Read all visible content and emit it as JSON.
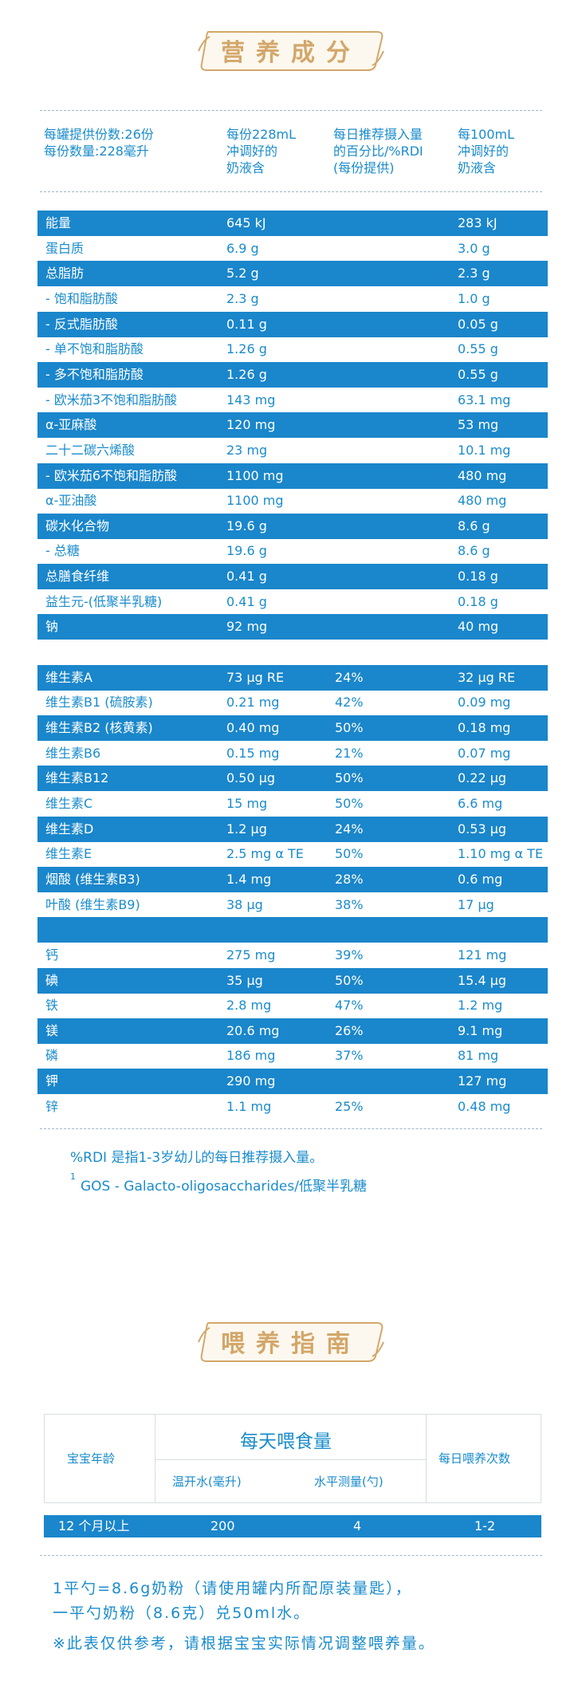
{
  "nutrition": {
    "title": "营养成分",
    "header": {
      "col1": [
        "每罐提供份数:26份",
        "每份数量:228毫升"
      ],
      "col2": [
        "每份228mL",
        "冲调好的",
        "奶液含"
      ],
      "col3": [
        "每日推荐摄入量",
        "的百分比/%RDI",
        "(每份提供)"
      ],
      "col4": [
        "每100mL",
        "冲调好的",
        "奶液含"
      ]
    },
    "rows": [
      {
        "name": "能量",
        "per": "645 kJ",
        "rdi": "",
        "p100": "283 kJ"
      },
      {
        "name": "蛋白质",
        "per": "6.9 g",
        "rdi": "",
        "p100": "3.0 g"
      },
      {
        "name": "总脂肪",
        "per": "5.2 g",
        "rdi": "",
        "p100": "2.3 g"
      },
      {
        "name": "- 饱和脂肪酸",
        "per": "2.3 g",
        "rdi": "",
        "p100": "1.0 g"
      },
      {
        "name": "- 反式脂肪酸",
        "per": "0.11 g",
        "rdi": "",
        "p100": "0.05 g"
      },
      {
        "name": "- 单不饱和脂肪酸",
        "per": "1.26 g",
        "rdi": "",
        "p100": "0.55 g"
      },
      {
        "name": "- 多不饱和脂肪酸",
        "per": "1.26 g",
        "rdi": "",
        "p100": "0.55 g"
      },
      {
        "name": "- 欧米茄3不饱和脂肪酸",
        "per": "143 mg",
        "rdi": "",
        "p100": "63.1 mg"
      },
      {
        "name": "α-亚麻酸",
        "per": "120 mg",
        "rdi": "",
        "p100": "53 mg"
      },
      {
        "name": "二十二碳六烯酸",
        "per": " 23 mg",
        "rdi": "",
        "p100": "10.1 mg"
      },
      {
        "name": "- 欧米茄6不饱和脂肪酸",
        "per": "1100 mg",
        "rdi": "",
        "p100": "480 mg"
      },
      {
        "name": "α-亚油酸",
        "per": "1100 mg",
        "rdi": "",
        "p100": "480 mg"
      },
      {
        "name": "碳水化合物",
        "per": "19.6 g",
        "rdi": "",
        "p100": "8.6 g"
      },
      {
        "name": "- 总糖",
        "per": "19.6 g",
        "rdi": "",
        "p100": "8.6 g"
      },
      {
        "name": "总膳食纤维",
        "per": "0.41 g",
        "rdi": "",
        "p100": "0.18 g"
      },
      {
        "name": "益生元-(低聚半乳糖)",
        "per": "0.41 g",
        "rdi": "",
        "p100": "0.18 g"
      },
      {
        "name": "钠",
        "per": "92 mg",
        "rdi": "",
        "p100": "40 mg"
      },
      {
        "name": "",
        "per": "",
        "rdi": "",
        "p100": ""
      },
      {
        "name": "维生素A",
        "per": "73 µg RE",
        "rdi": "24%",
        "p100": "32 µg RE"
      },
      {
        "name": "维生素B1 (硫胺素)",
        "per": "0.21 mg",
        "rdi": "42%",
        "p100": "0.09 mg"
      },
      {
        "name": "维生素B2 (核黄素)",
        "per": "0.40 mg",
        "rdi": "50%",
        "p100": "0.18 mg"
      },
      {
        "name": "维生素B6",
        "per": "0.15 mg",
        "rdi": "21%",
        "p100": "0.07 mg"
      },
      {
        "name": "维生素B12",
        "per": "0.50 µg",
        "rdi": "50%",
        "p100": "0.22 µg"
      },
      {
        "name": "维生素C",
        "per": "15 mg",
        "rdi": "50%",
        "p100": "6.6 mg"
      },
      {
        "name": "维生素D",
        "per": "1.2 µg",
        "rdi": "24%",
        "p100": "0.53 µg"
      },
      {
        "name": "维生素E",
        "per": "2.5 mg α TE",
        "rdi": "50%",
        "p100": "1.10 mg α TE"
      },
      {
        "name": "烟酸 (维生素B3)",
        "per": "1.4 mg",
        "rdi": "28%",
        "p100": "0.6 mg"
      },
      {
        "name": "叶酸 (维生素B9)",
        "per": "38 µg",
        "rdi": "38%",
        "p100": "17 µg"
      },
      {
        "name": "",
        "per": "",
        "rdi": "",
        "p100": ""
      },
      {
        "name": "钙",
        "per": "275 mg",
        "rdi": "39%",
        "p100": "121 mg"
      },
      {
        "name": "碘",
        "per": "35 µg",
        "rdi": "50%",
        "p100": "15.4 µg"
      },
      {
        "name": "铁",
        "per": "2.8 mg",
        "rdi": "47%",
        "p100": "1.2 mg"
      },
      {
        "name": "镁",
        "per": "20.6 mg",
        "rdi": "26%",
        "p100": "9.1 mg"
      },
      {
        "name": "磷",
        "per": "186 mg",
        "rdi": "37%",
        "p100": "81 mg"
      },
      {
        "name": "钾",
        "per": "290 mg",
        "rdi": "",
        "p100": "127 mg"
      },
      {
        "name": "锌",
        "per": "1.1 mg",
        "rdi": "25%",
        "p100": "0.48 mg"
      }
    ],
    "note1": "%RDI 是指1-3岁幼儿的每日推荐摄入量。",
    "note2_sup": "1",
    "note2": "GOS - Galacto-oligosaccharides/低聚半乳糖"
  },
  "feeding": {
    "title": "喂养指南",
    "age_header": "宝宝年龄",
    "daily_header": "每天喂食量",
    "water_header": "温开水(毫升)",
    "scoop_header": "水平测量(勺)",
    "times_header": "每日喂养次数",
    "row": {
      "age": "12 个月以上",
      "water": "200",
      "scoop": "4",
      "times": "1-2"
    },
    "note_line1": "1平勺=8.6g奶粉（请使用罐内所配原装量匙），",
    "note_line2": "一平勺奶粉（8.6克）兑50ml水。",
    "note_line3": "※此表仅供参考，请根据宝宝实际情况调整喂养量。"
  },
  "colors": {
    "accent": "#1a86cb",
    "gold": "#d3a76a"
  }
}
